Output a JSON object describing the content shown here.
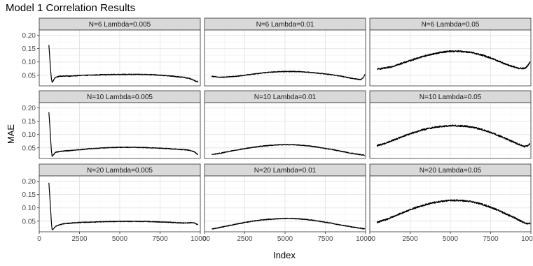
{
  "chart_data": {
    "type": "line",
    "title": "Model 1 Correlation Results",
    "xlabel": "Index",
    "ylabel": "MAE",
    "xlim": [
      0,
      10000
    ],
    "ylim": [
      0.01,
      0.22
    ],
    "x_ticks": [
      0,
      2500,
      5000,
      7500,
      10000
    ],
    "x_tick_labels": [
      "0",
      "2500",
      "5000",
      "7500",
      "10000"
    ],
    "y_ticks": [
      0.05,
      0.1,
      0.15,
      0.2
    ],
    "y_tick_labels": [
      "0.05",
      "0.10",
      "0.15",
      "0.20"
    ],
    "grid": true,
    "facet_layout": {
      "rows": 3,
      "cols": 3
    },
    "line_color": "#000000",
    "strip_fill": "#d9d9d9",
    "panels": [
      {
        "label": "N=6 Lambda=0.005",
        "row": 0,
        "col": 0,
        "noise": 0.0015,
        "x": [
          600,
          650,
          700,
          750,
          800,
          900,
          1000,
          1250,
          1500,
          2000,
          2500,
          3000,
          3500,
          4000,
          5000,
          6000,
          6500,
          7000,
          7500,
          8000,
          8500,
          9000,
          9300,
          9500,
          9700,
          9850
        ],
        "y": [
          0.163,
          0.12,
          0.075,
          0.04,
          0.023,
          0.032,
          0.042,
          0.046,
          0.047,
          0.047,
          0.049,
          0.05,
          0.051,
          0.052,
          0.053,
          0.053,
          0.053,
          0.052,
          0.05,
          0.048,
          0.045,
          0.042,
          0.038,
          0.034,
          0.028,
          0.026
        ]
      },
      {
        "label": "N=6 Lambda=0.01",
        "row": 0,
        "col": 1,
        "noise": 0.0015,
        "x": [
          450,
          800,
          1000,
          1500,
          2000,
          2500,
          3000,
          3500,
          4000,
          4500,
          5000,
          5500,
          6000,
          6500,
          7000,
          7500,
          8000,
          8500,
          9000,
          9500,
          9700,
          9850,
          9950
        ],
        "y": [
          0.046,
          0.043,
          0.042,
          0.044,
          0.046,
          0.05,
          0.054,
          0.058,
          0.061,
          0.063,
          0.064,
          0.064,
          0.063,
          0.061,
          0.058,
          0.055,
          0.051,
          0.046,
          0.04,
          0.035,
          0.034,
          0.04,
          0.053
        ]
      },
      {
        "label": "N=6 Lambda=0.05",
        "row": 0,
        "col": 2,
        "noise": 0.003,
        "x": [
          450,
          1000,
          1500,
          2000,
          2500,
          3000,
          3500,
          4000,
          4500,
          5000,
          5500,
          6000,
          6500,
          7000,
          7500,
          8000,
          8500,
          9000,
          9300,
          9600,
          9800,
          9950
        ],
        "y": [
          0.073,
          0.077,
          0.085,
          0.095,
          0.105,
          0.115,
          0.124,
          0.131,
          0.137,
          0.14,
          0.14,
          0.138,
          0.133,
          0.125,
          0.115,
          0.103,
          0.09,
          0.08,
          0.076,
          0.075,
          0.085,
          0.1
        ]
      },
      {
        "label": "N=10 Lambda=0.005",
        "row": 1,
        "col": 0,
        "noise": 0.0015,
        "x": [
          600,
          650,
          700,
          750,
          800,
          900,
          1000,
          1250,
          1500,
          2000,
          2500,
          3000,
          3500,
          4000,
          5000,
          6000,
          6500,
          7000,
          7500,
          8000,
          8500,
          9000,
          9300,
          9600,
          9850
        ],
        "y": [
          0.183,
          0.14,
          0.09,
          0.045,
          0.018,
          0.025,
          0.033,
          0.036,
          0.038,
          0.04,
          0.043,
          0.046,
          0.048,
          0.05,
          0.052,
          0.052,
          0.051,
          0.05,
          0.049,
          0.047,
          0.045,
          0.043,
          0.041,
          0.036,
          0.024
        ]
      },
      {
        "label": "N=10 Lambda=0.01",
        "row": 1,
        "col": 1,
        "noise": 0.0015,
        "x": [
          450,
          1000,
          1500,
          2000,
          2500,
          3000,
          3500,
          4000,
          4500,
          5000,
          5500,
          6000,
          6500,
          7000,
          7500,
          8000,
          8500,
          9000,
          9500,
          9950
        ],
        "y": [
          0.025,
          0.03,
          0.036,
          0.042,
          0.047,
          0.052,
          0.056,
          0.059,
          0.061,
          0.062,
          0.062,
          0.06,
          0.057,
          0.053,
          0.048,
          0.043,
          0.037,
          0.031,
          0.026,
          0.022
        ]
      },
      {
        "label": "N=10 Lambda=0.05",
        "row": 1,
        "col": 2,
        "noise": 0.003,
        "x": [
          450,
          1000,
          1500,
          2000,
          2500,
          3000,
          3500,
          4000,
          4500,
          5000,
          5500,
          6000,
          6500,
          7000,
          7500,
          8000,
          8500,
          9000,
          9300,
          9600,
          9800,
          9950
        ],
        "y": [
          0.058,
          0.068,
          0.08,
          0.092,
          0.103,
          0.113,
          0.121,
          0.127,
          0.131,
          0.133,
          0.133,
          0.131,
          0.126,
          0.118,
          0.108,
          0.096,
          0.083,
          0.07,
          0.062,
          0.055,
          0.057,
          0.066
        ]
      },
      {
        "label": "N=20 Lambda=0.005",
        "row": 2,
        "col": 0,
        "noise": 0.0015,
        "x": [
          600,
          650,
          700,
          750,
          800,
          900,
          1000,
          1250,
          1500,
          2000,
          2500,
          3000,
          3500,
          4000,
          5000,
          6000,
          6500,
          7000,
          7500,
          8000,
          8500,
          9000,
          9300,
          9600,
          9850
        ],
        "y": [
          0.193,
          0.15,
          0.1,
          0.05,
          0.016,
          0.022,
          0.03,
          0.036,
          0.04,
          0.043,
          0.045,
          0.046,
          0.047,
          0.048,
          0.049,
          0.049,
          0.049,
          0.048,
          0.047,
          0.046,
          0.044,
          0.043,
          0.044,
          0.044,
          0.037
        ]
      },
      {
        "label": "N=20 Lambda=0.01",
        "row": 2,
        "col": 1,
        "noise": 0.0015,
        "x": [
          450,
          1000,
          1500,
          2000,
          2500,
          3000,
          3500,
          4000,
          4500,
          5000,
          5500,
          6000,
          6500,
          7000,
          7500,
          8000,
          8500,
          9000,
          9500,
          9950
        ],
        "y": [
          0.02,
          0.027,
          0.033,
          0.039,
          0.045,
          0.05,
          0.054,
          0.057,
          0.059,
          0.06,
          0.06,
          0.058,
          0.055,
          0.051,
          0.046,
          0.041,
          0.035,
          0.03,
          0.025,
          0.021
        ]
      },
      {
        "label": "N=20 Lambda=0.05",
        "row": 2,
        "col": 2,
        "noise": 0.003,
        "x": [
          450,
          1000,
          1500,
          2000,
          2500,
          3000,
          3500,
          4000,
          4500,
          5000,
          5500,
          6000,
          6500,
          7000,
          7500,
          8000,
          8500,
          9000,
          9300,
          9600,
          9800,
          9950
        ],
        "y": [
          0.046,
          0.056,
          0.068,
          0.081,
          0.093,
          0.104,
          0.113,
          0.12,
          0.125,
          0.128,
          0.128,
          0.126,
          0.121,
          0.113,
          0.102,
          0.09,
          0.076,
          0.062,
          0.053,
          0.044,
          0.04,
          0.042
        ]
      }
    ]
  }
}
